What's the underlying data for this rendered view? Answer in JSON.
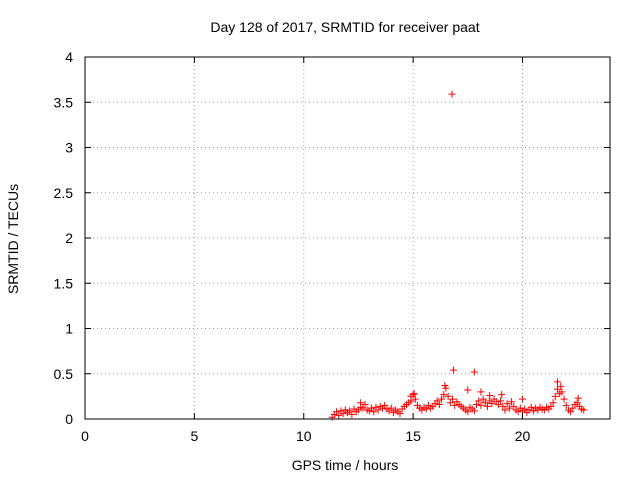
{
  "chart_data": {
    "type": "scatter",
    "title": "Day 128 of 2017, SRMTID for receiver paat",
    "xlabel": "GPS time / hours",
    "ylabel": "SRMTID / TECUs",
    "xlim": [
      0,
      24
    ],
    "ylim": [
      0,
      4
    ],
    "xticks": [
      0,
      5,
      10,
      15,
      20
    ],
    "xtick_labels": [
      "0",
      "5",
      "10",
      "15",
      "20"
    ],
    "yticks": [
      0,
      0.5,
      1,
      1.5,
      2,
      2.5,
      3,
      3.5,
      4
    ],
    "ytick_labels": [
      "0",
      "0.5",
      "1",
      "1.5",
      "2",
      "2.5",
      "3",
      "3.5",
      "4"
    ],
    "grid": true,
    "marker": "plus",
    "colors": {
      "series": "#ff0000",
      "grid": "#a0a0a0",
      "axis": "#000000"
    },
    "series": [
      {
        "points": [
          [
            11.3,
            0.02
          ],
          [
            11.4,
            0.05
          ],
          [
            11.5,
            0.08
          ],
          [
            11.6,
            0.04
          ],
          [
            11.7,
            0.09
          ],
          [
            11.8,
            0.06
          ],
          [
            11.9,
            0.1
          ],
          [
            12.0,
            0.07
          ],
          [
            12.1,
            0.09
          ],
          [
            12.2,
            0.05
          ],
          [
            12.3,
            0.11
          ],
          [
            12.4,
            0.08
          ],
          [
            12.5,
            0.1
          ],
          [
            12.6,
            0.13
          ],
          [
            12.7,
            0.12
          ],
          [
            12.8,
            0.16
          ],
          [
            12.9,
            0.1
          ],
          [
            13.0,
            0.09
          ],
          [
            13.1,
            0.12
          ],
          [
            13.2,
            0.08
          ],
          [
            13.3,
            0.13
          ],
          [
            13.4,
            0.1
          ],
          [
            13.5,
            0.14
          ],
          [
            13.6,
            0.12
          ],
          [
            13.7,
            0.15
          ],
          [
            13.8,
            0.11
          ],
          [
            13.9,
            0.09
          ],
          [
            14.0,
            0.12
          ],
          [
            14.1,
            0.07
          ],
          [
            14.2,
            0.1
          ],
          [
            14.3,
            0.08
          ],
          [
            14.4,
            0.06
          ],
          [
            14.5,
            0.11
          ],
          [
            14.6,
            0.14
          ],
          [
            14.7,
            0.16
          ],
          [
            14.8,
            0.18
          ],
          [
            14.9,
            0.2
          ],
          [
            15.0,
            0.27
          ],
          [
            15.1,
            0.22
          ],
          [
            15.2,
            0.15
          ],
          [
            15.3,
            0.12
          ],
          [
            15.4,
            0.1
          ],
          [
            15.5,
            0.13
          ],
          [
            15.6,
            0.11
          ],
          [
            15.7,
            0.15
          ],
          [
            15.8,
            0.12
          ],
          [
            15.9,
            0.14
          ],
          [
            16.0,
            0.17
          ],
          [
            16.1,
            0.2
          ],
          [
            16.2,
            0.16
          ],
          [
            16.3,
            0.22
          ],
          [
            16.4,
            0.27
          ],
          [
            16.5,
            0.34
          ],
          [
            16.6,
            0.25
          ],
          [
            16.7,
            0.18
          ],
          [
            16.8,
            0.22
          ],
          [
            16.9,
            0.15
          ],
          [
            17.0,
            0.19
          ],
          [
            17.1,
            0.16
          ],
          [
            17.2,
            0.14
          ],
          [
            17.3,
            0.12
          ],
          [
            17.4,
            0.1
          ],
          [
            17.5,
            0.08
          ],
          [
            17.6,
            0.13
          ],
          [
            17.7,
            0.11
          ],
          [
            17.8,
            0.09
          ],
          [
            17.9,
            0.16
          ],
          [
            18.0,
            0.2
          ],
          [
            18.1,
            0.15
          ],
          [
            18.2,
            0.22
          ],
          [
            18.3,
            0.18
          ],
          [
            18.4,
            0.14
          ],
          [
            18.5,
            0.2
          ],
          [
            18.6,
            0.17
          ],
          [
            18.7,
            0.22
          ],
          [
            18.8,
            0.19
          ],
          [
            18.9,
            0.16
          ],
          [
            19.0,
            0.2
          ],
          [
            19.1,
            0.14
          ],
          [
            19.2,
            0.1
          ],
          [
            19.3,
            0.17
          ],
          [
            19.4,
            0.12
          ],
          [
            19.5,
            0.19
          ],
          [
            19.6,
            0.14
          ],
          [
            19.7,
            0.1
          ],
          [
            19.8,
            0.08
          ],
          [
            19.9,
            0.12
          ],
          [
            20.0,
            0.09
          ],
          [
            20.1,
            0.11
          ],
          [
            20.2,
            0.07
          ],
          [
            20.3,
            0.1
          ],
          [
            20.4,
            0.13
          ],
          [
            20.5,
            0.09
          ],
          [
            20.6,
            0.12
          ],
          [
            20.7,
            0.1
          ],
          [
            20.8,
            0.13
          ],
          [
            20.9,
            0.11
          ],
          [
            21.0,
            0.1
          ],
          [
            21.1,
            0.13
          ],
          [
            21.2,
            0.11
          ],
          [
            21.3,
            0.14
          ],
          [
            21.4,
            0.18
          ],
          [
            21.5,
            0.25
          ],
          [
            21.6,
            0.33
          ],
          [
            21.7,
            0.28
          ],
          [
            21.8,
            0.3
          ],
          [
            21.9,
            0.22
          ],
          [
            22.0,
            0.15
          ],
          [
            22.1,
            0.1
          ],
          [
            22.2,
            0.08
          ],
          [
            22.3,
            0.12
          ],
          [
            22.4,
            0.16
          ],
          [
            22.5,
            0.18
          ],
          [
            22.6,
            0.14
          ],
          [
            22.7,
            0.11
          ],
          [
            22.8,
            0.1
          ],
          [
            16.78,
            3.59
          ],
          [
            16.85,
            0.54
          ],
          [
            17.8,
            0.52
          ],
          [
            17.5,
            0.32
          ],
          [
            18.1,
            0.3
          ],
          [
            21.6,
            0.41
          ],
          [
            21.75,
            0.36
          ],
          [
            15.05,
            0.28
          ],
          [
            16.45,
            0.37
          ],
          [
            18.5,
            0.26
          ],
          [
            20.0,
            0.22
          ],
          [
            22.55,
            0.23
          ],
          [
            12.6,
            0.18
          ],
          [
            14.9,
            0.25
          ],
          [
            19.05,
            0.27
          ]
        ]
      }
    ]
  }
}
